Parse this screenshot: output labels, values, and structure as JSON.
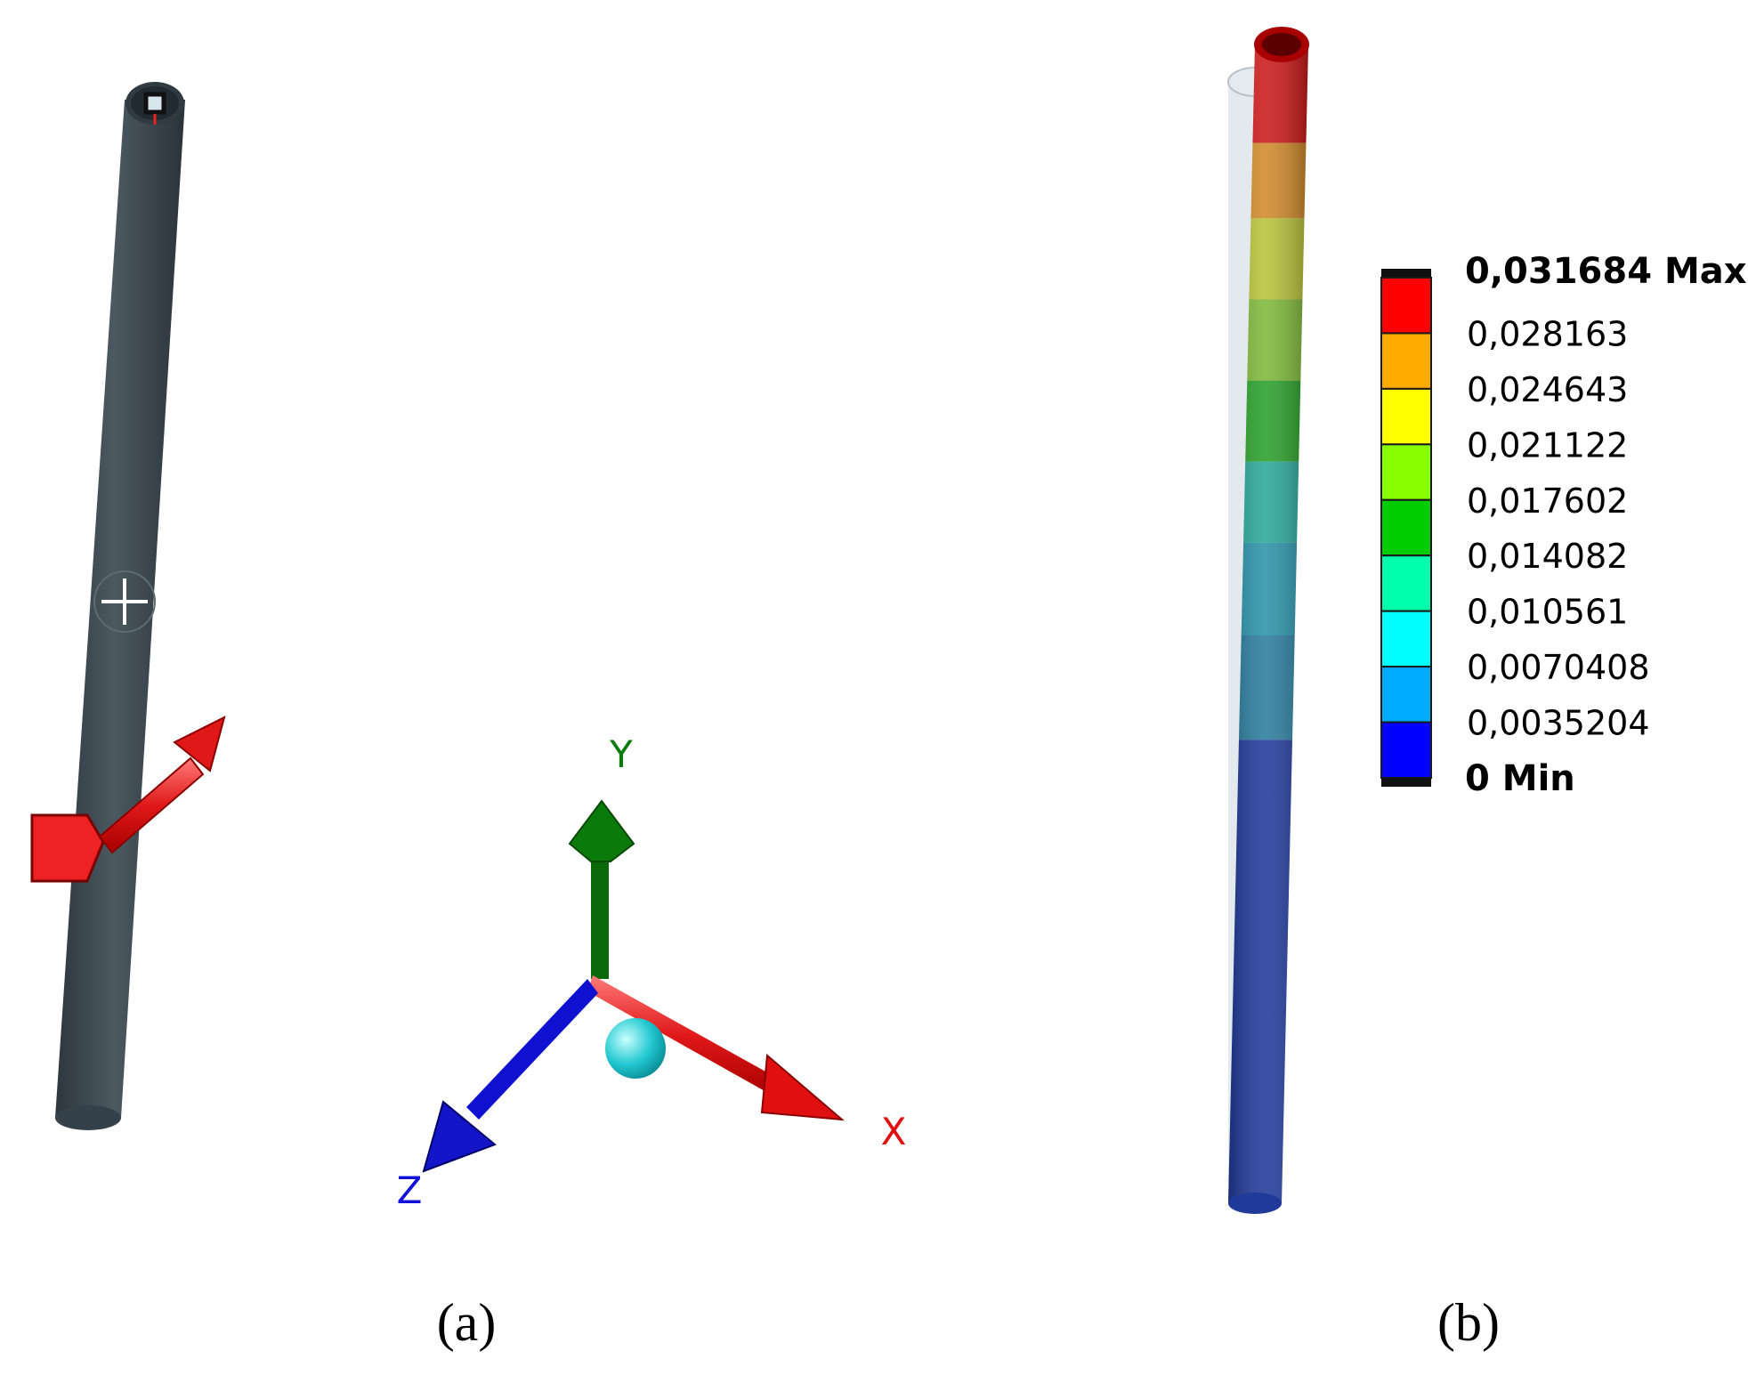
{
  "panel_a": {
    "caption": "(a)",
    "axes": {
      "x_label": "X",
      "y_label": "Y",
      "z_label": "Z",
      "x_color": "#e01010",
      "y_color": "#0a7a0a",
      "z_color": "#1010d8"
    },
    "beam_color": "#3e4a52",
    "marker_color": "#ee2222",
    "icons": [
      "support-square-icon",
      "center-cross-icon",
      "force-box-icon",
      "force-arrow-icon",
      "origin-sphere-icon"
    ]
  },
  "panel_b": {
    "caption": "(b)",
    "legend": {
      "max_label": "0,031684 Max",
      "min_label": "0 Min",
      "ticks": [
        "0,028163",
        "0,024643",
        "0,021122",
        "0,017602",
        "0,014082",
        "0,010561",
        "0,0070408",
        "0,0035204"
      ],
      "colors": [
        "#ff0000",
        "#ffaa00",
        "#ffff00",
        "#88ff00",
        "#00cc00",
        "#00ffaa",
        "#00ffff",
        "#00aaff",
        "#0000ff"
      ]
    },
    "beam_colors": [
      "#cc1a1a",
      "#d08a2a",
      "#b8c23a",
      "#7fb83a",
      "#2aa02a",
      "#2aa79a",
      "#2a93a8",
      "#2a7c9e",
      "#203a9a"
    ]
  }
}
